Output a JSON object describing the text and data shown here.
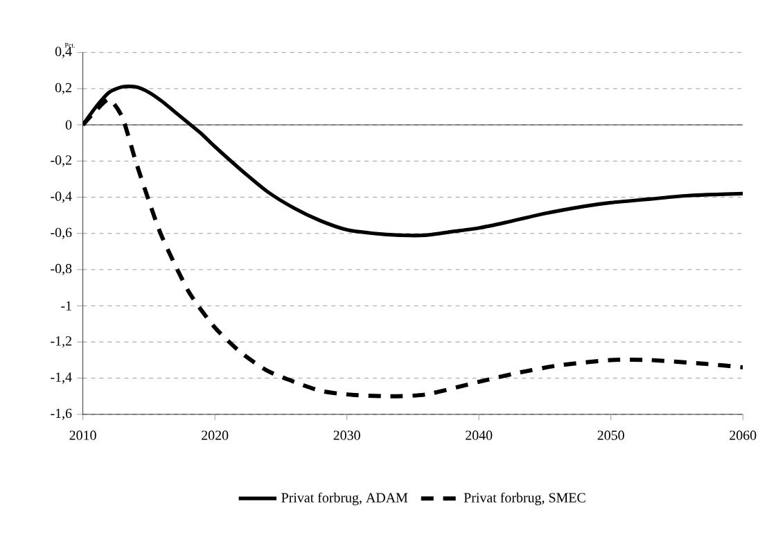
{
  "chart_data": {
    "type": "line",
    "ylabel": "Pct.",
    "xlim": [
      2010,
      2060
    ],
    "xticks": [
      2010,
      2020,
      2030,
      2040,
      2050,
      2060
    ],
    "ylim": [
      -1.6,
      0.4
    ],
    "yticks": [
      {
        "value": 0.4,
        "label": "0,4"
      },
      {
        "value": 0.2,
        "label": "0,2"
      },
      {
        "value": 0,
        "label": "0"
      },
      {
        "value": -0.2,
        "label": "-0,2"
      },
      {
        "value": -0.4,
        "label": "-0,4"
      },
      {
        "value": -0.6,
        "label": "-0,6"
      },
      {
        "value": -0.8,
        "label": "-0,8"
      },
      {
        "value": -1,
        "label": "-1"
      },
      {
        "value": -1.2,
        "label": "-1,2"
      },
      {
        "value": -1.4,
        "label": "-1,4"
      },
      {
        "value": -1.6,
        "label": "-1,6"
      }
    ],
    "grid": "y",
    "legend": "bottom",
    "marker": "none",
    "series": [
      {
        "name": "Privat forbrug, ADAM",
        "color": "#000000",
        "line_style": "solid",
        "x": [
          2010,
          2011,
          2012,
          2013,
          2014,
          2015,
          2016,
          2017,
          2018,
          2019,
          2020,
          2022,
          2024,
          2026,
          2028,
          2030,
          2032,
          2034,
          2036,
          2038,
          2040,
          2042,
          2045,
          2048,
          2050,
          2053,
          2056,
          2060
        ],
        "values": [
          0,
          0.1,
          0.18,
          0.21,
          0.21,
          0.18,
          0.13,
          0.07,
          0.01,
          -0.05,
          -0.12,
          -0.25,
          -0.37,
          -0.46,
          -0.53,
          -0.58,
          -0.6,
          -0.61,
          -0.61,
          -0.59,
          -0.57,
          -0.54,
          -0.49,
          -0.45,
          -0.43,
          -0.41,
          -0.39,
          -0.38
        ]
      },
      {
        "name": "Privat forbrug, SMEC",
        "color": "#000000",
        "line_style": "dashed",
        "x": [
          2010,
          2011,
          2012,
          2013,
          2014,
          2015,
          2016,
          2018,
          2020,
          2022,
          2024,
          2026,
          2028,
          2030,
          2033,
          2036,
          2040,
          2043,
          2046,
          2050,
          2053,
          2057,
          2060
        ],
        "values": [
          0,
          0.08,
          0.14,
          0.04,
          -0.2,
          -0.42,
          -0.62,
          -0.92,
          -1.12,
          -1.26,
          -1.36,
          -1.42,
          -1.47,
          -1.49,
          -1.5,
          -1.49,
          -1.42,
          -1.37,
          -1.33,
          -1.3,
          -1.3,
          -1.32,
          -1.34
        ]
      }
    ]
  }
}
